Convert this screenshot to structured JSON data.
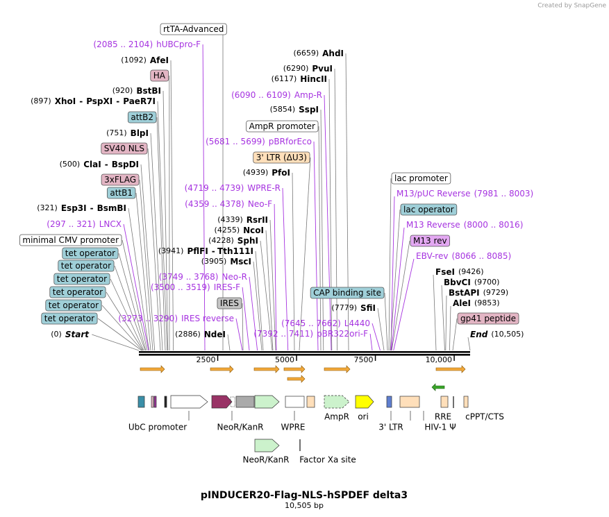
{
  "watermark": "Created by SnapGene",
  "title": "pINDUCER20-Flag-NLS-hSPDEF delta3",
  "subtitle": "10,505 bp",
  "length": 10505,
  "ruler": {
    "ticks": [
      2500,
      5000,
      7500,
      {
        "value": 10000,
        "label": "10,000"
      }
    ]
  },
  "labels": [
    {
      "kind": "feature",
      "name": "rtTA-Advanced",
      "color": "#ffffff"
    },
    {
      "kind": "primer",
      "pos": "(2085 .. 2104)",
      "name": "hUBCpro-F"
    },
    {
      "kind": "enzyme",
      "pos": "(1092)",
      "names": [
        "AfeI"
      ]
    },
    {
      "kind": "feature",
      "name": "HA",
      "color": "#e3b5c4"
    },
    {
      "kind": "enzyme",
      "pos": "(920)",
      "names": [
        "BstBI"
      ]
    },
    {
      "kind": "enzyme",
      "pos": "(897)",
      "names": [
        "XhoI",
        "-",
        "PspXI",
        "-",
        "PaeR7I"
      ]
    },
    {
      "kind": "feature",
      "name": "attB2",
      "color": "#9fcfd8"
    },
    {
      "kind": "enzyme",
      "pos": "(751)",
      "names": [
        "BlpI"
      ]
    },
    {
      "kind": "feature",
      "name": "SV40 NLS",
      "color": "#e3b5c4"
    },
    {
      "kind": "enzyme",
      "pos": "(500)",
      "names": [
        "ClaI",
        "-",
        "BspDI"
      ]
    },
    {
      "kind": "feature",
      "name": "3xFLAG",
      "color": "#e3b5c4"
    },
    {
      "kind": "feature",
      "name": "attB1",
      "color": "#9fcfd8"
    },
    {
      "kind": "enzyme",
      "pos": "(321)",
      "names": [
        "Esp3I",
        "-",
        "BsmBI"
      ]
    },
    {
      "kind": "primer",
      "pos": "(297 .. 321)",
      "name": "LNCX"
    },
    {
      "kind": "feature",
      "name": "minimal CMV promoter",
      "color": "#ffffff"
    },
    {
      "kind": "feature",
      "name": "tet operator",
      "color": "#9fcfd8"
    },
    {
      "kind": "feature",
      "name": "tet operator",
      "color": "#9fcfd8"
    },
    {
      "kind": "feature",
      "name": "tet operator",
      "color": "#9fcfd8"
    },
    {
      "kind": "feature",
      "name": "tet operator",
      "color": "#9fcfd8"
    },
    {
      "kind": "feature",
      "name": "tet operator",
      "color": "#9fcfd8"
    },
    {
      "kind": "feature",
      "name": "tet operator",
      "color": "#9fcfd8"
    },
    {
      "kind": "end",
      "pos": "(0)",
      "name": "Start"
    },
    {
      "kind": "enzyme",
      "pos": "(3941)",
      "names": [
        "PflFI",
        "-",
        "Tth111I"
      ]
    },
    {
      "kind": "enzyme",
      "pos": "(3905)",
      "names": [
        "MscI"
      ]
    },
    {
      "kind": "primer",
      "pos": "(3749 .. 3768)",
      "name": "Neo-R"
    },
    {
      "kind": "primer",
      "pos": "(3500 .. 3519)",
      "name": "IRES-F"
    },
    {
      "kind": "feature",
      "name": "IRES",
      "color": "#c4c4c4"
    },
    {
      "kind": "primer",
      "pos": "(3273 .. 3290)",
      "name": "IRES reverse"
    },
    {
      "kind": "enzyme",
      "pos": "(2886)",
      "names": [
        "NdeI"
      ]
    },
    {
      "kind": "primer",
      "pos": "(4719 .. 4739)",
      "name": "WPRE-R"
    },
    {
      "kind": "primer",
      "pos": "(4359 .. 4378)",
      "name": "Neo-F"
    },
    {
      "kind": "enzyme",
      "pos": "(4339)",
      "names": [
        "RsrII"
      ]
    },
    {
      "kind": "enzyme",
      "pos": "(4255)",
      "names": [
        "NcoI"
      ]
    },
    {
      "kind": "enzyme",
      "pos": "(4228)",
      "names": [
        "SphI"
      ]
    },
    {
      "kind": "enzyme",
      "pos": "(4939)",
      "names": [
        "PfoI"
      ]
    },
    {
      "kind": "feature",
      "name": "3' LTR (ΔU3)",
      "color": "#ffdfba"
    },
    {
      "kind": "primer",
      "pos": "(5681 .. 5699)",
      "name": "pBRforEco"
    },
    {
      "kind": "feature",
      "name": "AmpR promoter",
      "color": "#ffffff"
    },
    {
      "kind": "enzyme",
      "pos": "(5854)",
      "names": [
        "SspI"
      ]
    },
    {
      "kind": "primer",
      "pos": "(6090 .. 6109)",
      "name": "Amp-R"
    },
    {
      "kind": "enzyme",
      "pos": "(6117)",
      "names": [
        "HincII"
      ]
    },
    {
      "kind": "enzyme",
      "pos": "(6290)",
      "names": [
        "PvuI"
      ]
    },
    {
      "kind": "enzyme",
      "pos": "(6659)",
      "names": [
        "AhdI"
      ]
    },
    {
      "kind": "feature",
      "name": "CAP binding site",
      "color": "#9fcfd8"
    },
    {
      "kind": "enzyme",
      "pos": "(7779)",
      "names": [
        "SfiI"
      ]
    },
    {
      "kind": "primer",
      "pos": "(7645 .. 7662)",
      "name": "L4440"
    },
    {
      "kind": "primer",
      "pos": "(7392 .. 7411)",
      "name": "pBR322ori-F"
    },
    {
      "kind": "feature",
      "name": "lac promoter",
      "color": "#ffffff"
    },
    {
      "kind": "primer",
      "pos": "(7981 .. 8003)",
      "name": "M13/pUC Reverse"
    },
    {
      "kind": "feature",
      "name": "lac operator",
      "color": "#9fcfd8"
    },
    {
      "kind": "primer",
      "pos": "(8000 .. 8016)",
      "name": "M13 Reverse"
    },
    {
      "kind": "feature",
      "name": "M13 rev",
      "color": "#e3a8f2"
    },
    {
      "kind": "primer",
      "pos": "(8066 .. 8085)",
      "name": "EBV-rev"
    },
    {
      "kind": "enzyme",
      "pos": "(9426)",
      "names": [
        "FseI"
      ]
    },
    {
      "kind": "enzyme",
      "pos": "(9700)",
      "names": [
        "BbvCI"
      ]
    },
    {
      "kind": "enzyme",
      "pos": "(9729)",
      "names": [
        "BstAPI"
      ]
    },
    {
      "kind": "enzyme",
      "pos": "(9853)",
      "names": [
        "AleI"
      ]
    },
    {
      "kind": "feature",
      "name": "gp41 peptide",
      "color": "#e3b5c4"
    },
    {
      "kind": "end",
      "pos": "(10,505)",
      "name": "End"
    }
  ],
  "features": [
    "UbC promoter",
    "NeoR/KanR",
    "WPRE",
    "AmpR",
    "ori",
    "3' LTR",
    "HIV-1 Ψ",
    "RRE",
    "cPPT/CTS",
    "NeoR/KanR",
    "Factor Xa site"
  ]
}
